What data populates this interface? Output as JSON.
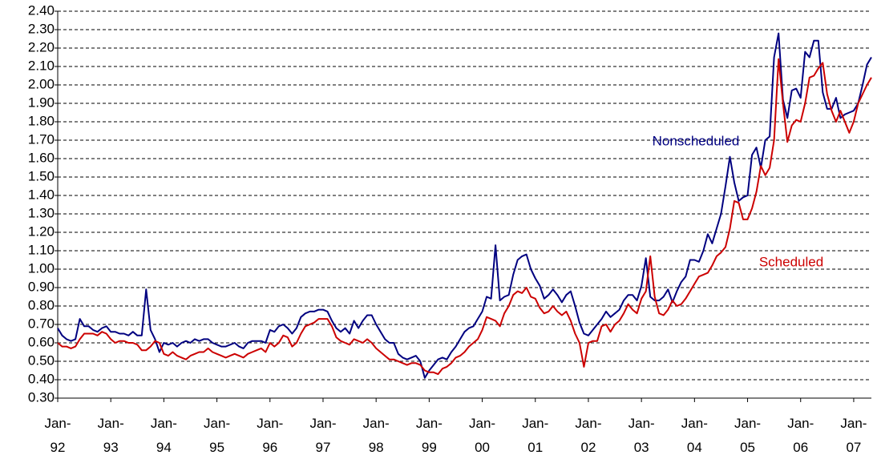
{
  "chart_data": {
    "type": "line",
    "categories": [
      "Jan-92",
      null,
      null,
      null,
      null,
      null,
      null,
      null,
      null,
      null,
      null,
      null,
      "Jan-93",
      null,
      null,
      null,
      null,
      null,
      null,
      null,
      null,
      null,
      null,
      null,
      "Jan-94",
      null,
      null,
      null,
      null,
      null,
      null,
      null,
      null,
      null,
      null,
      null,
      "Jan-95",
      null,
      null,
      null,
      null,
      null,
      null,
      null,
      null,
      null,
      null,
      null,
      "Jan-96",
      null,
      null,
      null,
      null,
      null,
      null,
      null,
      null,
      null,
      null,
      null,
      "Jan-97",
      null,
      null,
      null,
      null,
      null,
      null,
      null,
      null,
      null,
      null,
      null,
      "Jan-98",
      null,
      null,
      null,
      null,
      null,
      null,
      null,
      null,
      null,
      null,
      null,
      "Jan-99",
      null,
      null,
      null,
      null,
      null,
      null,
      null,
      null,
      null,
      null,
      null,
      "Jan-00",
      null,
      null,
      null,
      null,
      null,
      null,
      null,
      null,
      null,
      null,
      null,
      "Jan-01",
      null,
      null,
      null,
      null,
      null,
      null,
      null,
      null,
      null,
      null,
      null,
      "Jan-02",
      null,
      null,
      null,
      null,
      null,
      null,
      null,
      null,
      null,
      null,
      null,
      "Jan-03",
      null,
      null,
      null,
      null,
      null,
      null,
      null,
      null,
      null,
      null,
      null,
      "Jan-04",
      null,
      null,
      null,
      null,
      null,
      null,
      null,
      null,
      null,
      null,
      null,
      "Jan-05",
      null,
      null,
      null,
      null,
      null,
      null,
      null,
      null,
      null,
      null,
      null,
      "Jan-06",
      null,
      null,
      null,
      null,
      null,
      null,
      null,
      null,
      null,
      null,
      null,
      "Jan-07",
      null,
      null,
      null,
      null
    ],
    "series": [
      {
        "name": "Nonscheduled",
        "color": "#000080",
        "values": [
          0.68,
          0.64,
          0.62,
          0.61,
          0.62,
          0.73,
          0.69,
          0.69,
          0.67,
          0.66,
          0.68,
          0.69,
          0.66,
          0.66,
          0.65,
          0.65,
          0.64,
          0.66,
          0.64,
          0.64,
          0.89,
          0.67,
          0.62,
          0.55,
          0.6,
          0.59,
          0.6,
          0.58,
          0.6,
          0.61,
          0.6,
          0.62,
          0.61,
          0.62,
          0.62,
          0.6,
          0.59,
          0.58,
          0.58,
          0.59,
          0.6,
          0.58,
          0.57,
          0.6,
          0.61,
          0.61,
          0.61,
          0.6,
          0.67,
          0.66,
          0.69,
          0.7,
          0.68,
          0.65,
          0.68,
          0.74,
          0.76,
          0.77,
          0.77,
          0.78,
          0.78,
          0.77,
          0.72,
          0.68,
          0.66,
          0.68,
          0.65,
          0.72,
          0.68,
          0.72,
          0.75,
          0.75,
          0.7,
          0.66,
          0.62,
          0.6,
          0.6,
          0.54,
          0.52,
          0.51,
          0.52,
          0.53,
          0.5,
          0.41,
          0.45,
          0.48,
          0.51,
          0.52,
          0.51,
          0.55,
          0.58,
          0.62,
          0.66,
          0.68,
          0.69,
          0.73,
          0.77,
          0.85,
          0.84,
          1.13,
          0.83,
          0.85,
          0.86,
          0.97,
          1.05,
          1.07,
          1.08,
          1.0,
          0.95,
          0.91,
          0.84,
          0.86,
          0.89,
          0.86,
          0.82,
          0.86,
          0.88,
          0.8,
          0.71,
          0.65,
          0.64,
          0.67,
          0.7,
          0.73,
          0.77,
          0.74,
          0.76,
          0.78,
          0.83,
          0.86,
          0.86,
          0.83,
          0.91,
          1.06,
          0.85,
          0.83,
          0.83,
          0.85,
          0.89,
          0.82,
          0.88,
          0.93,
          0.96,
          1.05,
          1.05,
          1.04,
          1.1,
          1.19,
          1.14,
          1.22,
          1.3,
          1.45,
          1.61,
          1.47,
          1.37,
          1.39,
          1.4,
          1.62,
          1.66,
          1.55,
          1.7,
          1.72,
          2.15,
          2.28,
          1.92,
          1.82,
          1.97,
          1.98,
          1.93,
          2.18,
          2.15,
          2.24,
          2.24,
          1.96,
          1.87,
          1.87,
          1.93,
          1.82,
          1.84,
          1.85,
          1.86,
          1.9,
          2.0,
          2.11,
          2.15
        ]
      },
      {
        "name": "Scheduled",
        "color": "#cc0000",
        "values": [
          0.6,
          0.58,
          0.58,
          0.57,
          0.58,
          0.62,
          0.65,
          0.65,
          0.65,
          0.64,
          0.66,
          0.65,
          0.62,
          0.6,
          0.61,
          0.61,
          0.6,
          0.6,
          0.59,
          0.56,
          0.56,
          0.58,
          0.61,
          0.6,
          0.54,
          0.53,
          0.55,
          0.53,
          0.52,
          0.51,
          0.53,
          0.54,
          0.55,
          0.55,
          0.57,
          0.55,
          0.54,
          0.53,
          0.52,
          0.53,
          0.54,
          0.53,
          0.52,
          0.54,
          0.55,
          0.56,
          0.57,
          0.55,
          0.6,
          0.58,
          0.6,
          0.64,
          0.63,
          0.58,
          0.6,
          0.65,
          0.69,
          0.7,
          0.71,
          0.73,
          0.73,
          0.73,
          0.69,
          0.63,
          0.61,
          0.6,
          0.59,
          0.62,
          0.61,
          0.6,
          0.62,
          0.6,
          0.57,
          0.55,
          0.53,
          0.51,
          0.51,
          0.5,
          0.49,
          0.48,
          0.49,
          0.49,
          0.48,
          0.45,
          0.44,
          0.44,
          0.43,
          0.46,
          0.47,
          0.49,
          0.52,
          0.53,
          0.55,
          0.58,
          0.6,
          0.62,
          0.67,
          0.74,
          0.73,
          0.72,
          0.69,
          0.76,
          0.8,
          0.86,
          0.88,
          0.87,
          0.9,
          0.85,
          0.84,
          0.79,
          0.76,
          0.77,
          0.8,
          0.77,
          0.75,
          0.77,
          0.72,
          0.65,
          0.6,
          0.47,
          0.6,
          0.61,
          0.61,
          0.69,
          0.7,
          0.66,
          0.7,
          0.72,
          0.76,
          0.81,
          0.78,
          0.76,
          0.84,
          0.88,
          1.07,
          0.85,
          0.76,
          0.75,
          0.78,
          0.83,
          0.8,
          0.81,
          0.84,
          0.88,
          0.92,
          0.96,
          0.97,
          0.98,
          1.02,
          1.07,
          1.09,
          1.12,
          1.22,
          1.37,
          1.36,
          1.27,
          1.27,
          1.33,
          1.42,
          1.56,
          1.51,
          1.55,
          1.7,
          2.14,
          1.9,
          1.69,
          1.78,
          1.81,
          1.8,
          1.9,
          2.04,
          2.05,
          2.09,
          2.12,
          1.95,
          1.86,
          1.8,
          1.86,
          1.8,
          1.74,
          1.8,
          1.9,
          1.95,
          2.0,
          2.04
        ]
      }
    ],
    "ylim": [
      0.3,
      2.4
    ],
    "yticks": [
      {
        "value": 0.3,
        "label": "0.30"
      },
      {
        "value": 0.4,
        "label": "0.40"
      },
      {
        "value": 0.5,
        "label": "0.50"
      },
      {
        "value": 0.6,
        "label": "0.60"
      },
      {
        "value": 0.7,
        "label": "0.70"
      },
      {
        "value": 0.8,
        "label": "0.80"
      },
      {
        "value": 0.9,
        "label": "0.90"
      },
      {
        "value": 1.0,
        "label": "1.00"
      },
      {
        "value": 1.1,
        "label": "1.10"
      },
      {
        "value": 1.2,
        "label": "1.20"
      },
      {
        "value": 1.3,
        "label": "1.30"
      },
      {
        "value": 1.4,
        "label": "1.40"
      },
      {
        "value": 1.5,
        "label": "1.50"
      },
      {
        "value": 1.6,
        "label": "1.60"
      },
      {
        "value": 1.7,
        "label": "1.70"
      },
      {
        "value": 1.8,
        "label": "1.80"
      },
      {
        "value": 1.9,
        "label": "1.90"
      },
      {
        "value": 2.0,
        "label": "2.00"
      },
      {
        "value": 2.1,
        "label": "2.10"
      },
      {
        "value": 2.2,
        "label": "2.20"
      },
      {
        "value": 2.3,
        "label": "2.30"
      },
      {
        "value": 2.4,
        "label": "2.40"
      }
    ],
    "grid": true
  }
}
